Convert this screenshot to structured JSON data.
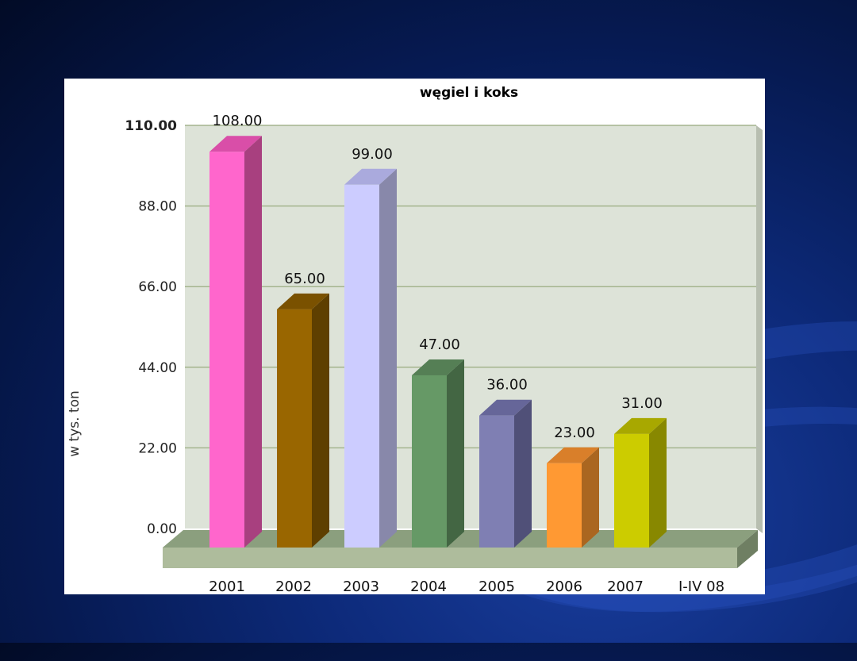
{
  "chart_data": {
    "type": "bar",
    "title": "węgiel i koks",
    "ylabel": "w tys. ton",
    "xlabel": "",
    "categories": [
      "2001",
      "2002",
      "2003",
      "2004",
      "2005",
      "2006",
      "2007",
      "I-IV 08"
    ],
    "values": [
      108,
      65,
      99,
      47,
      36,
      23,
      31,
      null
    ],
    "value_labels": [
      "108.00",
      "65.00",
      "99.00",
      "47.00",
      "36.00",
      "23.00",
      "31.00",
      ""
    ],
    "ylim": [
      0,
      110
    ],
    "yticks": [
      "0.00",
      "22.00",
      "44.00",
      "66.00",
      "88.00",
      "110.00"
    ],
    "grid": true,
    "legend": "none",
    "bar_colors": [
      {
        "front": "#ff66cc",
        "side": "#a8407f",
        "top": "#d94ea8"
      },
      {
        "front": "#996600",
        "side": "#5e3f00",
        "top": "#7a5100"
      },
      {
        "front": "#ccccff",
        "side": "#8888aa",
        "top": "#aaaadd"
      },
      {
        "front": "#669966",
        "side": "#436643",
        "top": "#557f55"
      },
      {
        "front": "#7f7fb3",
        "side": "#505078",
        "top": "#666699"
      },
      {
        "front": "#ff9933",
        "side": "#aa6620",
        "top": "#d97f2a"
      },
      {
        "front": "#cccc00",
        "side": "#888800",
        "top": "#a8a800"
      }
    ],
    "colors": {
      "plot_back": "#dde3d8",
      "plot_side": "#b7beb0",
      "grid": "#a4b48e",
      "floor_top": "#8b9f7e",
      "floor_front": "#aebc9c",
      "floor_side": "#6f7f63"
    }
  }
}
